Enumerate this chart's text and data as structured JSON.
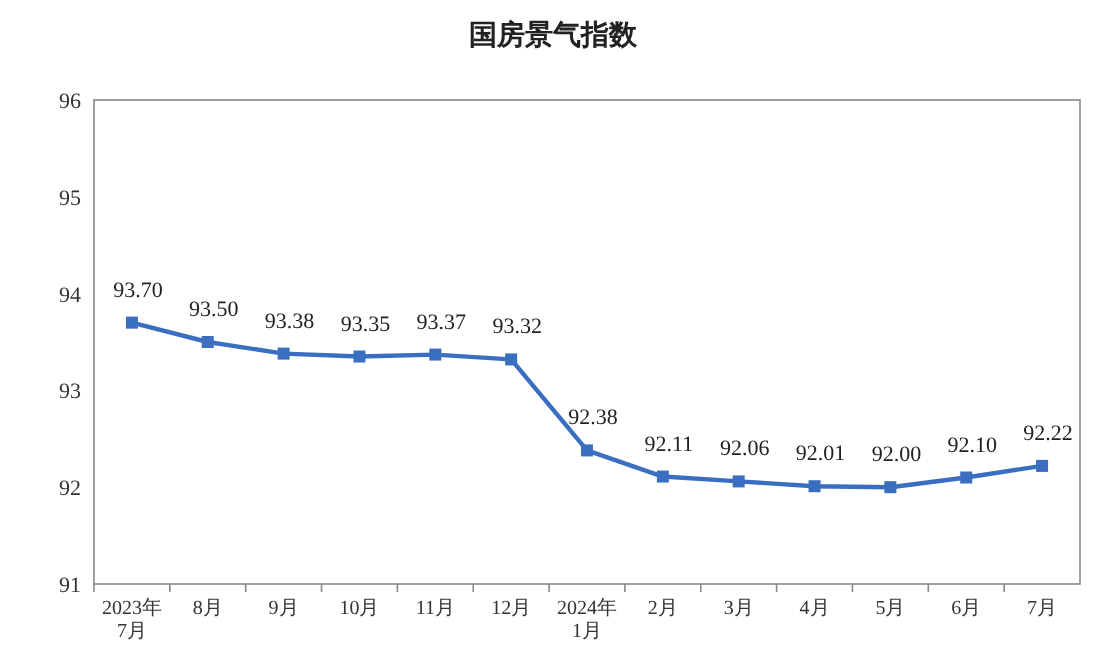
{
  "chart_data": {
    "type": "line",
    "title": "国房景气指数",
    "categories": [
      "2023年\n7月",
      "8月",
      "9月",
      "10月",
      "11月",
      "12月",
      "2024年\n1月",
      "2月",
      "3月",
      "4月",
      "5月",
      "6月",
      "7月"
    ],
    "series": [
      {
        "color": "#3a6ec0",
        "values": [
          93.7,
          93.5,
          93.38,
          93.35,
          93.37,
          93.32,
          92.38,
          92.11,
          92.06,
          92.01,
          92.0,
          92.1,
          92.22
        ],
        "value_labels": [
          "93.70",
          "93.50",
          "93.38",
          "93.35",
          "93.37",
          "93.32",
          "92.38",
          "92.11",
          "92.06",
          "92.01",
          "92.00",
          "92.10",
          "92.22"
        ]
      }
    ],
    "ylim": [
      91,
      96
    ],
    "yticks": [
      91,
      92,
      93,
      94,
      95,
      96
    ],
    "grid": false,
    "marker": "square",
    "line_style": "solid"
  }
}
